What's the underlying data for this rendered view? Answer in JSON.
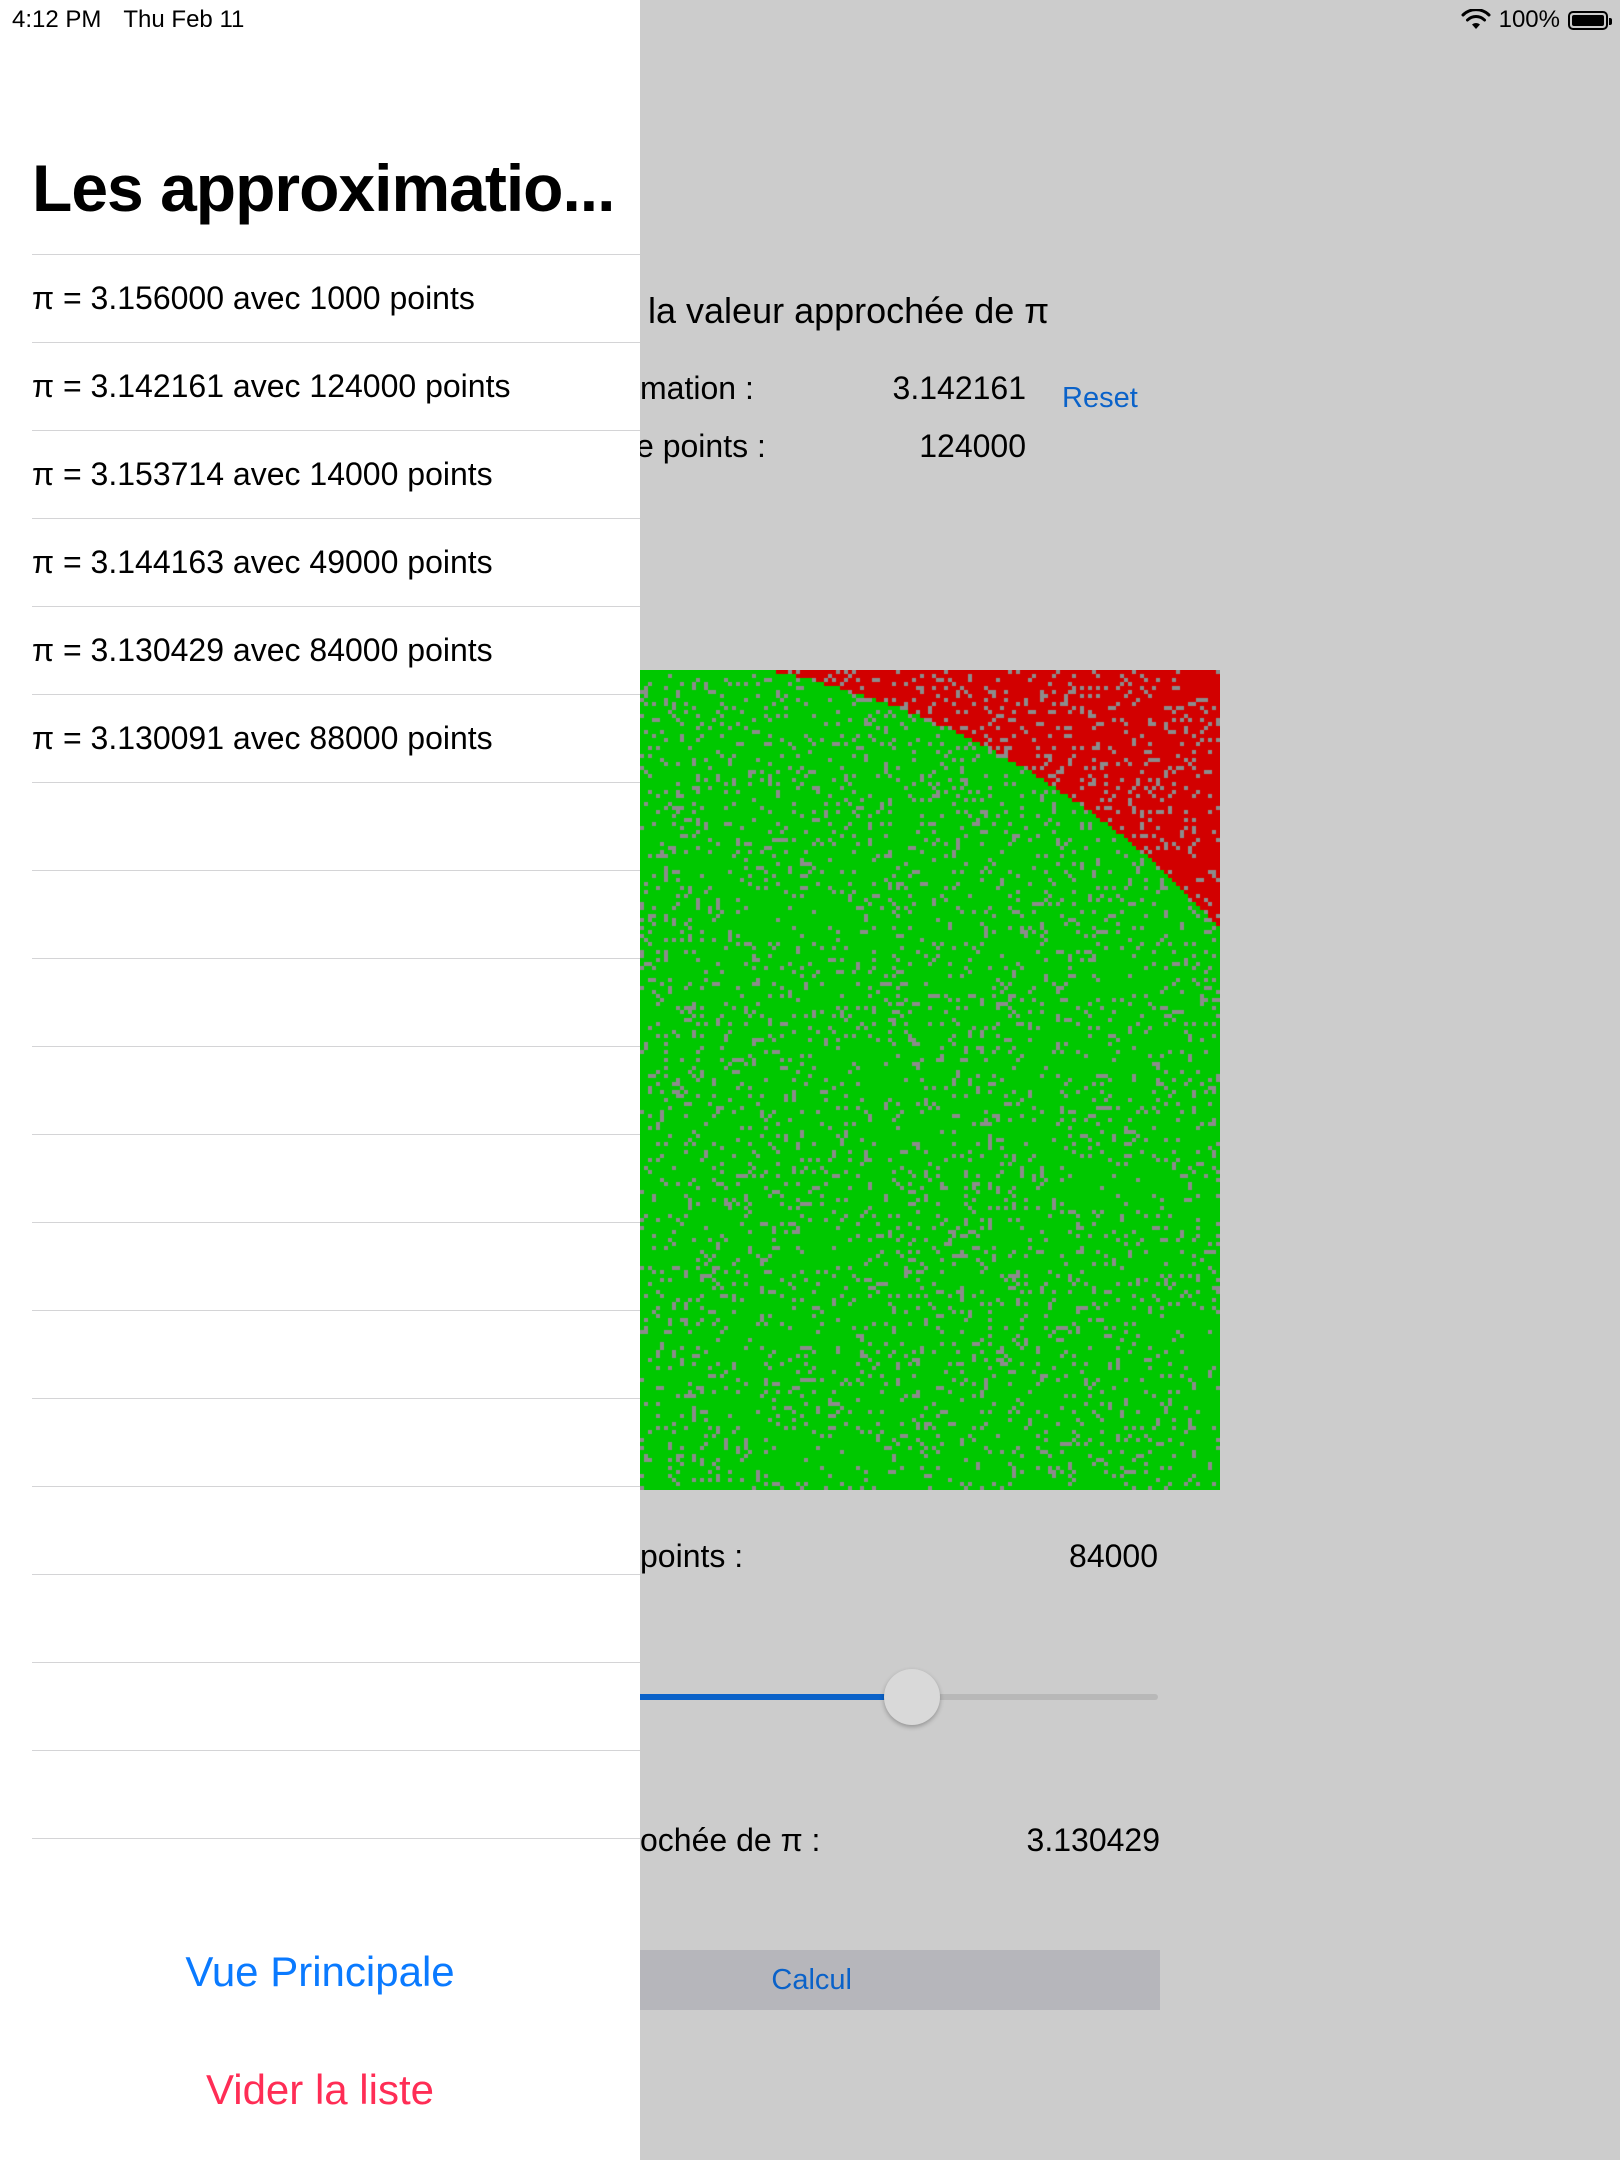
{
  "status_bar": {
    "time": "4:12 PM",
    "date": "Thu Feb 11",
    "battery": "100%"
  },
  "main_view": {
    "title": "la valeur approchée de π",
    "approx_label": "mation :",
    "approx_value": "3.142161",
    "total_points_label": "e points :",
    "total_points_value": "124000",
    "reset_label": "Reset",
    "points_label": "points :",
    "points_value": "84000",
    "slider_level": 0.56,
    "result_label": "ochée de π :",
    "result_value": "3.130429",
    "calc_label": "Calcul",
    "colors": {
      "inside": "#00c800",
      "outside": "#d20000",
      "noise": "#8c8c8c",
      "accent": "#0a62c9"
    }
  },
  "side_panel": {
    "title": "Les approximatio...",
    "items": [
      "π = 3.156000 avec 1000 points",
      "π = 3.142161 avec 124000 points",
      "π = 3.153714 avec 14000 points",
      "π = 3.144163 avec 49000 points",
      "π = 3.130429 avec 84000 points",
      "π = 3.130091 avec 88000 points"
    ],
    "main_view_button": "Vue Principale",
    "clear_button": "Vider la liste",
    "colors": {
      "primary": "#0a7aff",
      "destructive": "#ff2d55"
    }
  }
}
